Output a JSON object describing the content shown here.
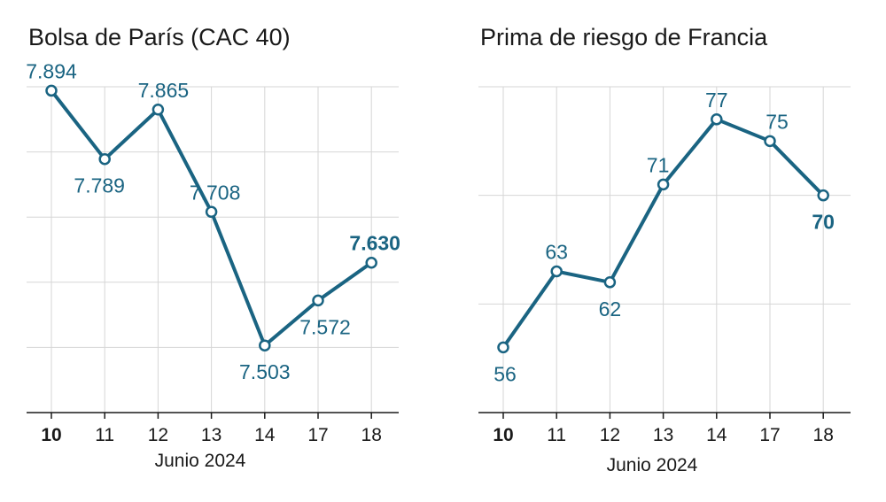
{
  "accent": "#1a6482",
  "chart_data": [
    {
      "type": "line",
      "title": "Bolsa de París (CAC 40)",
      "xlabel": "Junio 2024",
      "ylabel": "",
      "categories": [
        "10",
        "11",
        "12",
        "13",
        "14",
        "17",
        "18"
      ],
      "bold_category_index": 0,
      "values": [
        7894,
        7789,
        7865,
        7708,
        7503,
        7572,
        7630
      ],
      "data_labels": [
        "7.894",
        "7.789",
        "7.865",
        "7.708",
        "7.503",
        "7.572",
        "7.630"
      ],
      "bold_label_index": 6,
      "ylim": [
        7400,
        7900
      ],
      "grid_step": 100,
      "grid": true
    },
    {
      "type": "line",
      "title": "Prima de riesgo de Francia",
      "xlabel": "Junio 2024",
      "ylabel": "",
      "categories": [
        "10",
        "11",
        "12",
        "13",
        "14",
        "17",
        "18"
      ],
      "bold_category_index": 0,
      "values": [
        56,
        63,
        62,
        71,
        77,
        75,
        70
      ],
      "data_labels": [
        "56",
        "63",
        "62",
        "71",
        "77",
        "75",
        "70"
      ],
      "bold_label_index": 6,
      "ylim": [
        50,
        80
      ],
      "grid_step": 10,
      "grid": true
    }
  ]
}
